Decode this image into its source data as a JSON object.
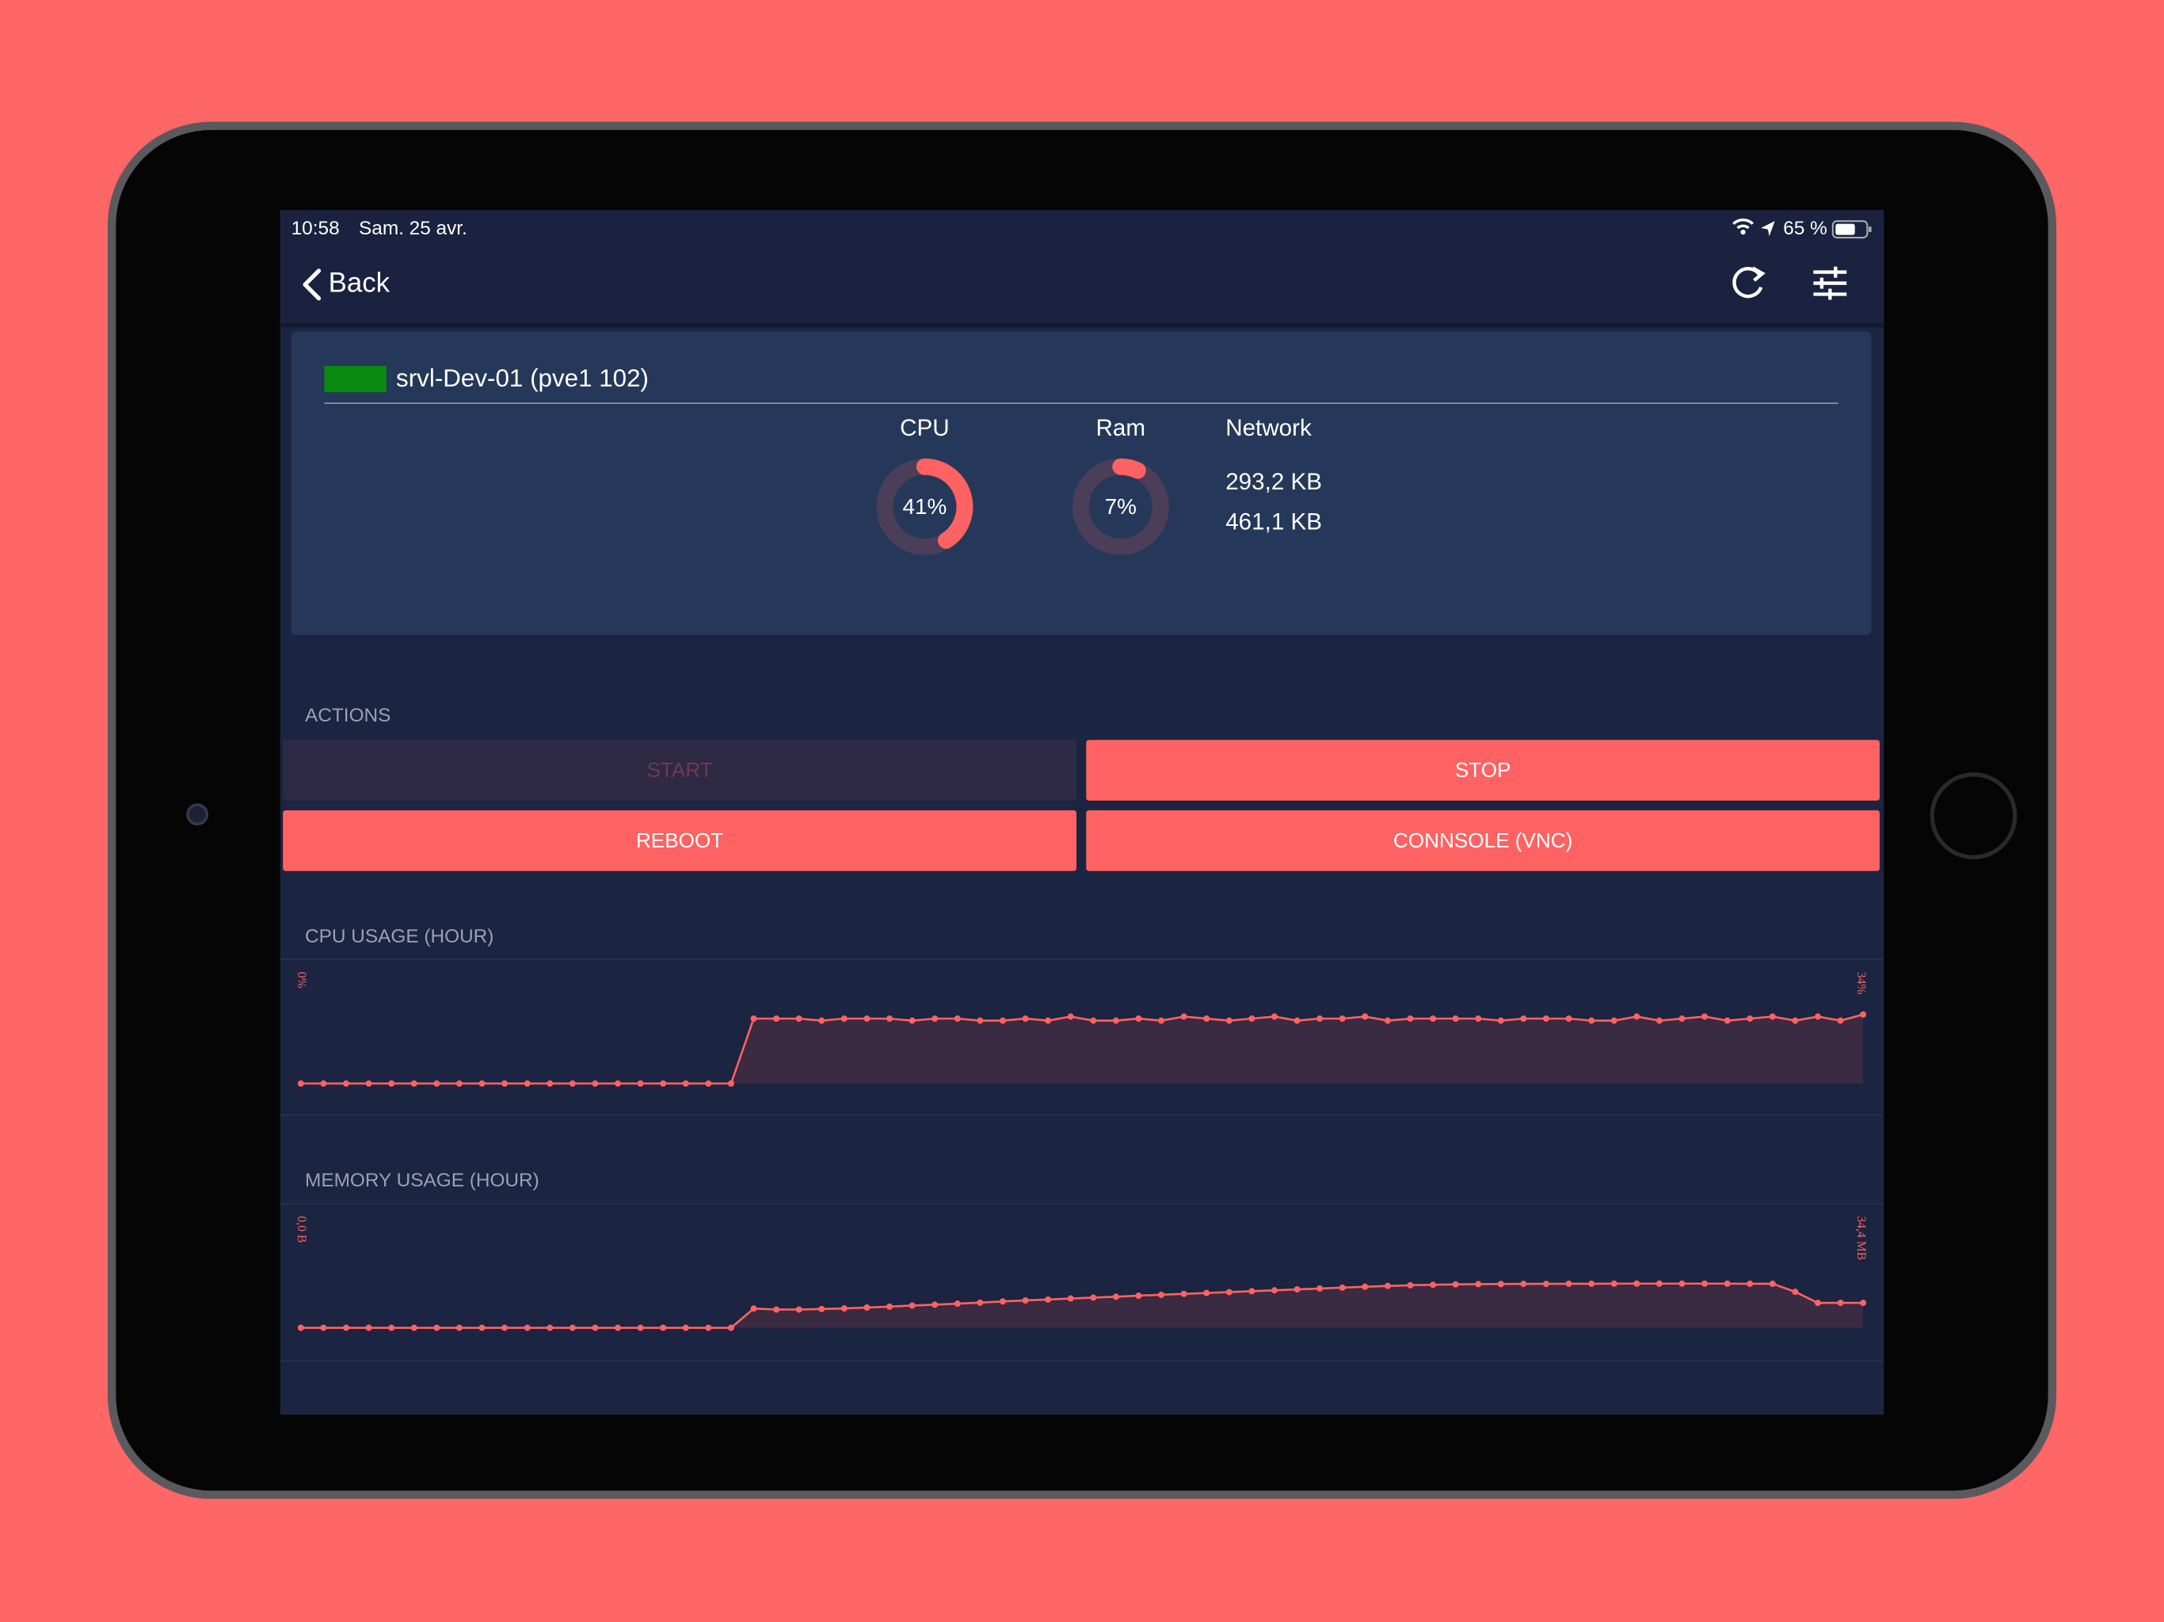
{
  "status_bar": {
    "time": "10:58",
    "date": "Sam. 25 avr.",
    "battery": "65 %"
  },
  "nav": {
    "back": "Back"
  },
  "server": {
    "name": "srvl-Dev-01 (pve1 102)",
    "cpu": {
      "title": "CPU",
      "value": 41,
      "label": "41%"
    },
    "ram": {
      "title": "Ram",
      "value": 7,
      "label": "7%"
    },
    "network": {
      "title": "Network",
      "values": [
        "293,2 KB",
        "461,1 KB"
      ]
    }
  },
  "actions": {
    "title": "ACTIONS",
    "buttons": [
      {
        "label": "START",
        "enabled": false
      },
      {
        "label": "STOP",
        "enabled": true
      },
      {
        "label": "REBOOT",
        "enabled": true
      },
      {
        "label": "CONNSOLE (VNC)",
        "enabled": true
      }
    ]
  },
  "charts": [
    {
      "title": "CPU USAGE (HOUR)",
      "yticks": [
        {
          "value": 0,
          "label": "0%"
        },
        {
          "value": 34,
          "label": "34%"
        }
      ],
      "values": [
        0,
        0,
        0,
        0,
        0,
        0,
        0,
        0,
        0,
        0,
        0,
        0,
        0,
        0,
        0,
        0,
        0,
        0,
        0,
        0,
        32,
        32,
        32,
        31,
        32,
        32,
        32,
        31,
        32,
        32,
        31,
        31,
        32,
        31,
        33,
        31,
        31,
        32,
        31,
        33,
        32,
        31,
        32,
        33,
        31,
        32,
        32,
        33,
        31,
        32,
        32,
        32,
        32,
        31,
        32,
        32,
        32,
        31,
        31,
        33,
        31,
        32,
        33,
        31,
        32,
        33,
        31,
        33,
        31,
        34
      ]
    },
    {
      "title": "MEMORY USAGE (HOUR)",
      "yticks": [
        {
          "value": 0,
          "label": "0,0 B"
        },
        {
          "value": 34.4,
          "label": "34,4 MB"
        }
      ],
      "values": [
        0,
        0,
        0,
        0,
        0,
        0,
        0,
        0,
        0,
        0,
        0,
        0,
        0,
        0,
        0,
        0,
        0,
        0,
        0,
        0,
        15.0,
        14.2,
        14.2,
        14.6,
        15.1,
        15.8,
        16.5,
        17.3,
        18.0,
        18.8,
        19.6,
        20.5,
        21.3,
        22.0,
        22.8,
        23.5,
        24.2,
        25.0,
        25.7,
        26.4,
        27.1,
        27.8,
        28.5,
        29.2,
        29.9,
        30.6,
        31.3,
        32.0,
        32.6,
        33.1,
        33.5,
        33.8,
        34.0,
        34.1,
        34.2,
        34.2,
        34.3,
        34.3,
        34.4,
        34.4,
        34.4,
        34.4,
        34.4,
        34.4,
        34.3,
        34.3,
        28.0,
        19.4,
        19.4,
        19.4
      ]
    }
  ]
}
